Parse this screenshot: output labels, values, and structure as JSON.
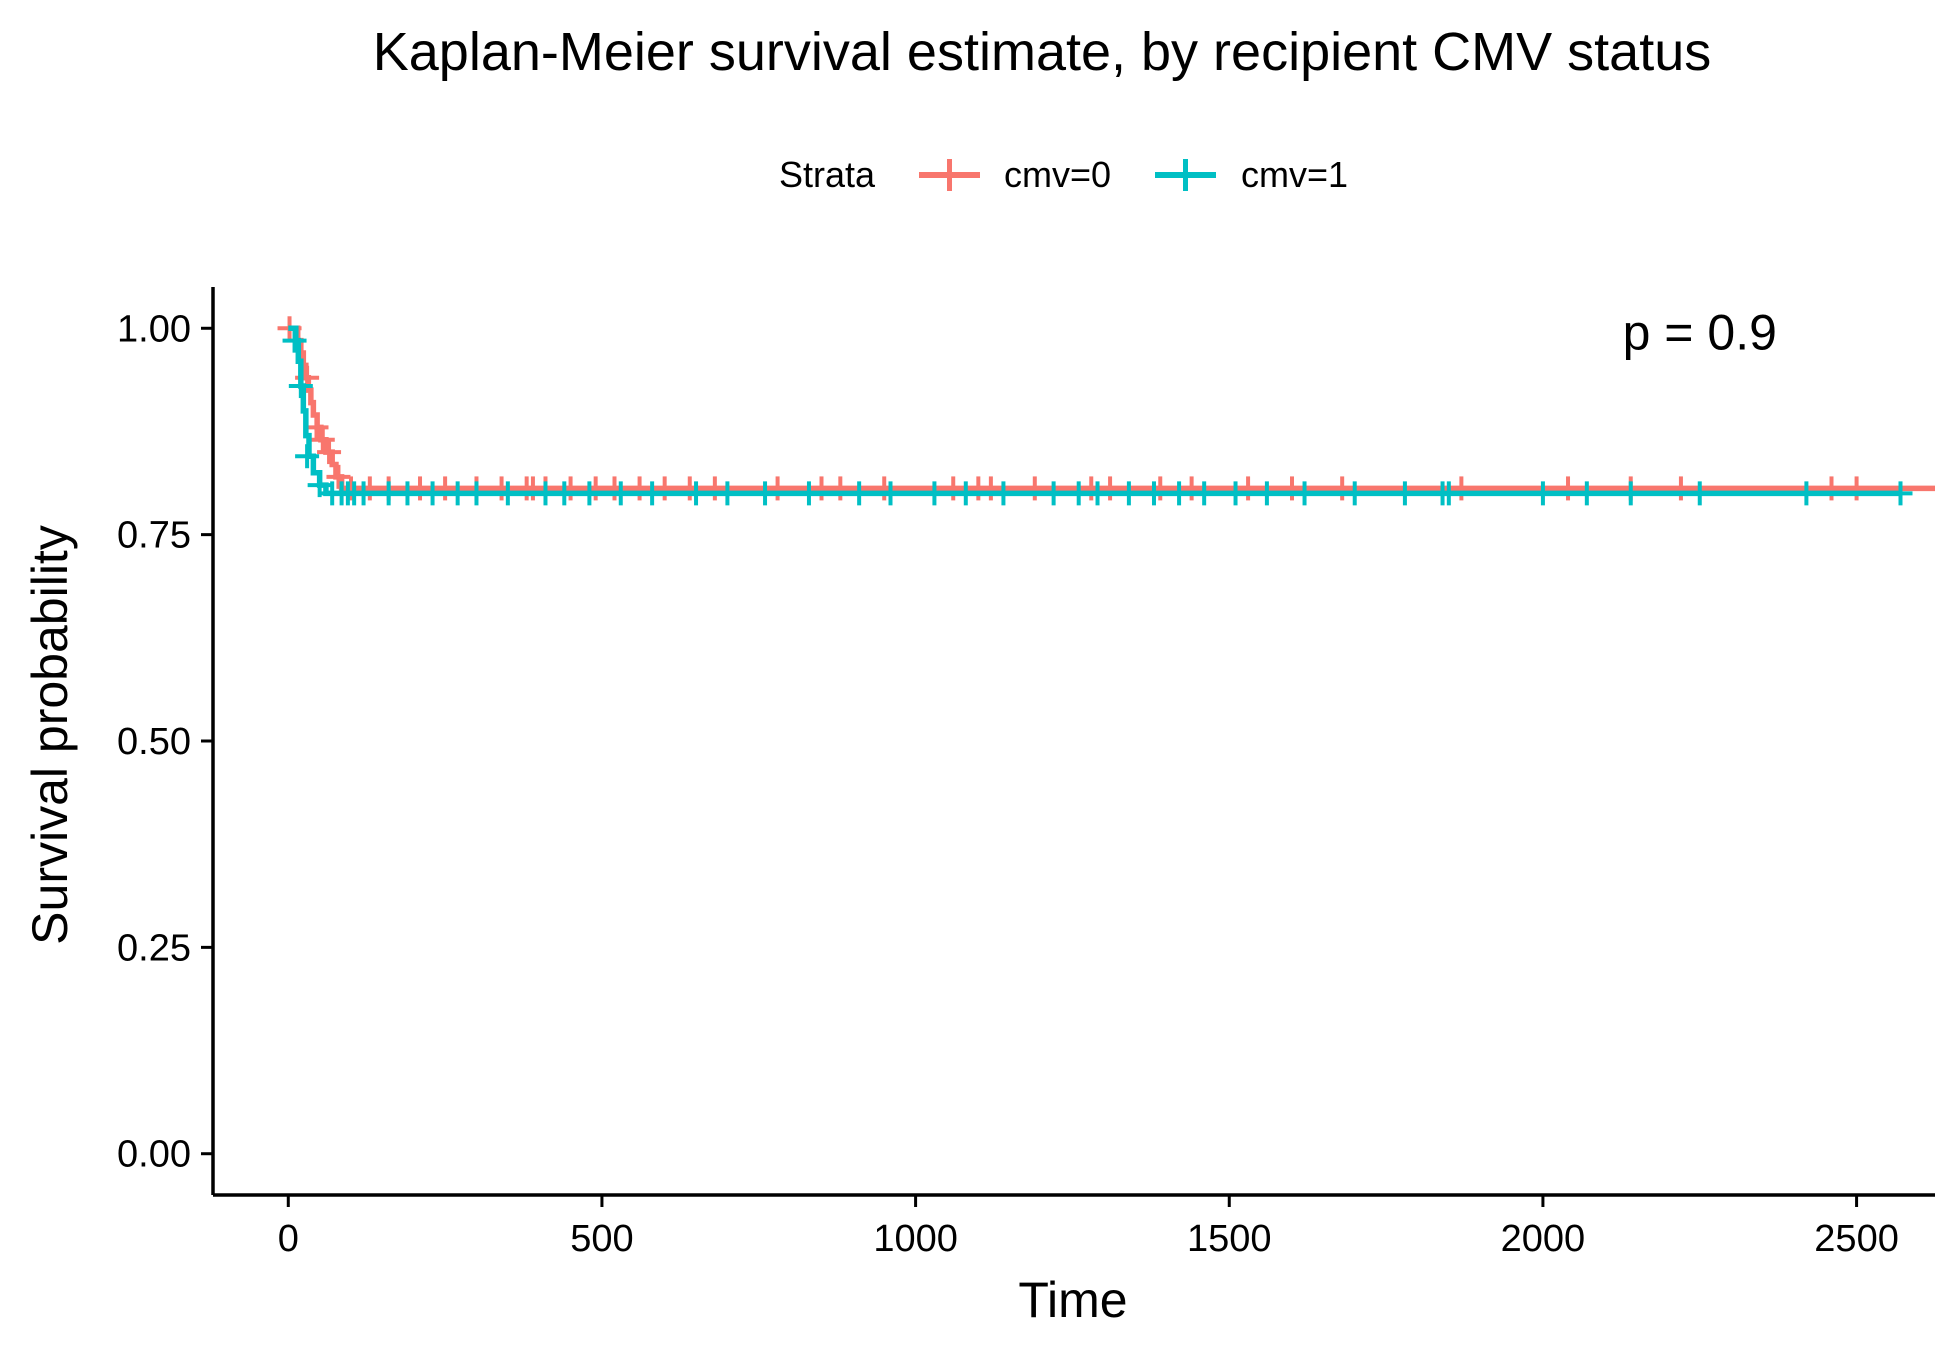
{
  "chart_data": {
    "type": "line",
    "title": "Kaplan-Meier survival estimate, by recipient CMV status",
    "xlabel": "Time",
    "ylabel": "Survival probability",
    "xlim": [
      -120,
      2625
    ],
    "ylim": [
      -0.05,
      1.05
    ],
    "x_ticks": [
      0,
      500,
      1000,
      1500,
      2000,
      2500
    ],
    "x_tick_labels": [
      "0",
      "500",
      "1000",
      "1500",
      "2000",
      "2500"
    ],
    "y_ticks": [
      0,
      0.25,
      0.5,
      0.75,
      1.0
    ],
    "y_tick_labels": [
      "0.00",
      "0.25",
      "0.50",
      "0.75",
      "1.00"
    ],
    "grid": false,
    "legend": {
      "title": "Strata",
      "position": "top",
      "entries": [
        "cmv=0",
        "cmv=1"
      ]
    },
    "annotation": {
      "text": "p = 0.9",
      "x": 2250,
      "y": 0.995
    },
    "series": [
      {
        "name": "cmv=0",
        "color": "#F8766D",
        "steps": [
          [
            0,
            1.0
          ],
          [
            15,
            0.985
          ],
          [
            20,
            0.97
          ],
          [
            24,
            0.955
          ],
          [
            28,
            0.94
          ],
          [
            32,
            0.925
          ],
          [
            36,
            0.91
          ],
          [
            40,
            0.895
          ],
          [
            46,
            0.88
          ],
          [
            52,
            0.865
          ],
          [
            60,
            0.85
          ],
          [
            70,
            0.835
          ],
          [
            76,
            0.82
          ],
          [
            85,
            0.806
          ],
          [
            2625,
            0.806
          ]
        ],
        "censor_x": [
          2,
          30,
          45,
          55,
          65,
          80,
          100,
          130,
          160,
          210,
          250,
          300,
          340,
          380,
          390,
          410,
          450,
          490,
          520,
          560,
          600,
          640,
          680,
          780,
          850,
          880,
          950,
          1060,
          1100,
          1120,
          1190,
          1280,
          1310,
          1390,
          1440,
          1530,
          1600,
          1680,
          1870,
          2040,
          2140,
          2220,
          2460,
          2500
        ],
        "censor_y": [
          1.0,
          0.94,
          0.88,
          0.865,
          0.85,
          0.82,
          0.806,
          0.806,
          0.806,
          0.806,
          0.806,
          0.806,
          0.806,
          0.806,
          0.806,
          0.806,
          0.806,
          0.806,
          0.806,
          0.806,
          0.806,
          0.806,
          0.806,
          0.806,
          0.806,
          0.806,
          0.806,
          0.806,
          0.806,
          0.806,
          0.806,
          0.806,
          0.806,
          0.806,
          0.806,
          0.806,
          0.806,
          0.806,
          0.806,
          0.806,
          0.806,
          0.806,
          0.806,
          0.806
        ]
      },
      {
        "name": "cmv=1",
        "color": "#00BFC4",
        "steps": [
          [
            0,
            1.0
          ],
          [
            12,
            0.985
          ],
          [
            16,
            0.96
          ],
          [
            20,
            0.93
          ],
          [
            24,
            0.9
          ],
          [
            28,
            0.87
          ],
          [
            33,
            0.845
          ],
          [
            40,
            0.825
          ],
          [
            50,
            0.81
          ],
          [
            60,
            0.8
          ],
          [
            2570,
            0.8
          ]
        ],
        "censor_x": [
          10,
          20,
          30,
          50,
          70,
          85,
          95,
          105,
          120,
          160,
          190,
          230,
          270,
          300,
          350,
          410,
          440,
          480,
          530,
          580,
          650,
          700,
          760,
          830,
          910,
          960,
          1030,
          1080,
          1140,
          1220,
          1260,
          1290,
          1340,
          1380,
          1420,
          1460,
          1510,
          1560,
          1620,
          1700,
          1780,
          1840,
          1850,
          2000,
          2070,
          2140,
          2250,
          2420,
          2570
        ],
        "censor_y": [
          0.985,
          0.93,
          0.845,
          0.81,
          0.8,
          0.8,
          0.8,
          0.8,
          0.8,
          0.8,
          0.8,
          0.8,
          0.8,
          0.8,
          0.8,
          0.8,
          0.8,
          0.8,
          0.8,
          0.8,
          0.8,
          0.8,
          0.8,
          0.8,
          0.8,
          0.8,
          0.8,
          0.8,
          0.8,
          0.8,
          0.8,
          0.8,
          0.8,
          0.8,
          0.8,
          0.8,
          0.8,
          0.8,
          0.8,
          0.8,
          0.8,
          0.8,
          0.8,
          0.8,
          0.8,
          0.8,
          0.8,
          0.8,
          0.8
        ]
      }
    ]
  }
}
